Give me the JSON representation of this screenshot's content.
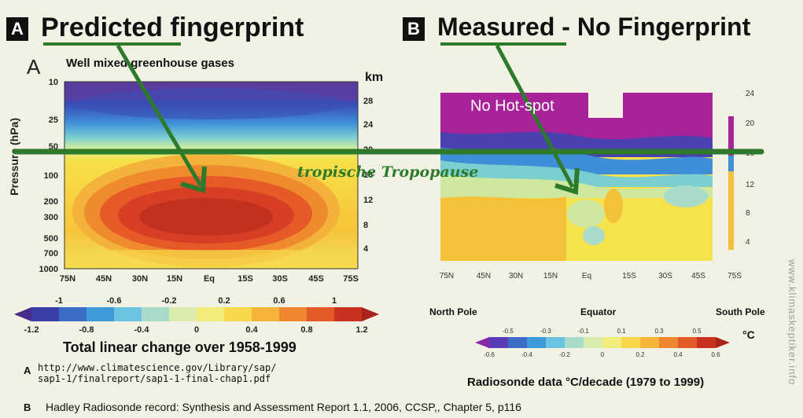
{
  "panel_a": {
    "badge": "A",
    "title": "Predicted fingerprint",
    "letter": "A",
    "subtitle": "Well mixed greenhouse gases",
    "ylabel": "Pressure (hPa)",
    "right_axis_unit": "km",
    "yticks": [
      "10",
      "25",
      "50",
      "100",
      "200",
      "300",
      "500",
      "700",
      "1000"
    ],
    "km_ticks": [
      "28",
      "24",
      "20",
      "16",
      "12",
      "8",
      "4"
    ],
    "xticks": [
      "75N",
      "45N",
      "30N",
      "15N",
      "Eq",
      "15S",
      "30S",
      "45S",
      "75S"
    ],
    "colorbar_top": [
      "-1",
      "-0.6",
      "-0.2",
      "0.2",
      "0.6",
      "1"
    ],
    "colorbar_bottom": [
      "-1.2",
      "-0.8",
      "-0.4",
      "0",
      "0.4",
      "0.8",
      "1.2"
    ],
    "colorbar_title": "Total linear change over 1958-1999",
    "source_letter": "A",
    "source_line1": "http://www.climatescience.gov/Library/sap/",
    "source_line2": "sap1-1/finalreport/sap1-1-final-chap1.pdf"
  },
  "panel_b": {
    "badge": "B",
    "title": "Measured - No Fingerprint",
    "hotspot_label": "No Hot-spot",
    "km_ticks": [
      "24",
      "20",
      "16",
      "12",
      "8",
      "4"
    ],
    "xticks": [
      "75N",
      "45N",
      "30N",
      "15N",
      "Eq",
      "15S",
      "30S",
      "45S",
      "75S"
    ],
    "north_label": "North Pole",
    "equator_label": "Equator",
    "south_label": "South Pole",
    "colorbar_top": [
      "-0.5",
      "-0.3",
      "-0.1",
      "0.1",
      "0.3",
      "0.5"
    ],
    "colorbar_bottom": [
      "-0.6",
      "-0.4",
      "-0.2",
      "0",
      "0.2",
      "0.4",
      "0.6"
    ],
    "unit": "°C",
    "caption": "Radiosonde data °C/decade (1979 to 1999)"
  },
  "overlay": {
    "tropopause_label": "tropische Tropopause",
    "line_color": "#2d7a2d"
  },
  "footer": {
    "letter": "B",
    "text": "Hadley Radiosonde record: Synthesis and Assessment Report 1.1, 2006, CCSP,, Chapter 5, p116"
  },
  "watermark": "www.klimaskeptiker.info",
  "chart_data": [
    {
      "type": "heatmap",
      "title": "Predicted fingerprint",
      "subtitle": "Well mixed greenhouse gases",
      "x": [
        "75N",
        "45N",
        "30N",
        "15N",
        "Eq",
        "15S",
        "30S",
        "45S",
        "75S"
      ],
      "y": [
        10,
        25,
        50,
        100,
        200,
        300,
        500,
        700,
        1000
      ],
      "ylabel": "Pressure (hPa)",
      "y2label": "km",
      "colorbar": {
        "title": "Total linear change over 1958-1999",
        "range": [
          -1.2,
          1.2
        ],
        "ticks": [
          -1.2,
          -1,
          -0.8,
          -0.6,
          -0.4,
          -0.2,
          0,
          0.2,
          0.4,
          0.6,
          0.8,
          1,
          1.2
        ]
      },
      "annotation": "tropische Tropopause"
    },
    {
      "type": "heatmap",
      "title": "Measured - No Fingerprint",
      "x": [
        "75N",
        "45N",
        "30N",
        "15N",
        "Eq",
        "15S",
        "30S",
        "45S",
        "75S"
      ],
      "y2": [
        24,
        20,
        16,
        12,
        8,
        4
      ],
      "colorbar": {
        "title": "Radiosonde data °C/decade (1979 to 1999)",
        "unit": "°C",
        "range": [
          -0.6,
          0.6
        ],
        "ticks": [
          -0.6,
          -0.5,
          -0.4,
          -0.3,
          -0.2,
          -0.1,
          0,
          0.1,
          0.2,
          0.3,
          0.4,
          0.5,
          0.6
        ]
      },
      "annotation": "No Hot-spot"
    }
  ]
}
